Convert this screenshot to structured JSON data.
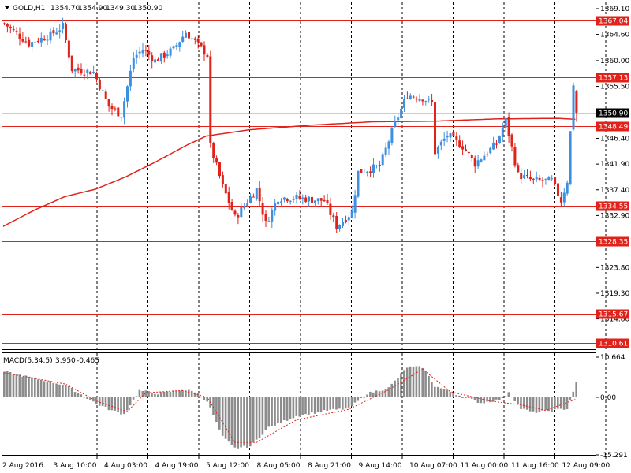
{
  "window": {
    "symbol_label": "GOLD,H1",
    "ohlc": {
      "open": "1354.70",
      "high": "1354.90",
      "low": "1349.30",
      "close": "1350.90"
    }
  },
  "indicator": {
    "name": "MACD(5,34,5)",
    "main": "3.950",
    "signal": "-0.465"
  },
  "colors": {
    "background": "#ffffff",
    "bull": "#3d8fe0",
    "bear": "#e0221b",
    "level_line": "#e0221b",
    "ma_line": "#e0221b",
    "histogram": "#8c8c8c",
    "signal_line": "#e0221b",
    "grid": "#000000",
    "current_price_tag": "#000000"
  },
  "chart_data": [
    {
      "type": "candlestick",
      "title": "",
      "timeframe": "H1",
      "x_labels": [
        "2 Aug 2016",
        "3 Aug 10:00",
        "4 Aug 03:00",
        "4 Aug 19:00",
        "5 Aug 12:00",
        "8 Aug 05:00",
        "8 Aug 21:00",
        "9 Aug 14:00",
        "10 Aug 07:00",
        "11 Aug 00:00",
        "11 Aug 16:00",
        "12 Aug 09:00"
      ],
      "y_ticks": [
        "1369.10",
        "1364.60",
        "1360.00",
        "1355.50",
        "1346.40",
        "1341.90",
        "1337.40",
        "1332.90",
        "1323.80",
        "1319.30",
        "1314.80"
      ],
      "ylim": [
        1309.5,
        1370.2
      ],
      "grid": "vertical dotted",
      "current_price": "1350.90",
      "horizontal_levels": [
        "1367.04",
        "1357.13",
        "1348.49",
        "1334.55",
        "1328.35",
        "1315.67",
        "1310.61"
      ],
      "moving_average": [
        {
          "x": 0,
          "y": 1331.0
        },
        {
          "x": 10,
          "y": 1333.8
        },
        {
          "x": 20,
          "y": 1336.2
        },
        {
          "x": 30,
          "y": 1337.5
        },
        {
          "x": 40,
          "y": 1339.7
        },
        {
          "x": 50,
          "y": 1342.4
        },
        {
          "x": 60,
          "y": 1345.3
        },
        {
          "x": 66,
          "y": 1346.8
        },
        {
          "x": 80,
          "y": 1347.9
        },
        {
          "x": 100,
          "y": 1348.7
        },
        {
          "x": 120,
          "y": 1349.3
        },
        {
          "x": 140,
          "y": 1349.4
        },
        {
          "x": 160,
          "y": 1349.8
        },
        {
          "x": 180,
          "y": 1349.9
        },
        {
          "x": 200,
          "y": 1349.4
        },
        {
          "x": 210,
          "y": 1348.8
        }
      ],
      "anchors": [
        {
          "x": 0,
          "c": 1366.5
        },
        {
          "x": 8,
          "c": 1363.0
        },
        {
          "x": 15,
          "c": 1364.5
        },
        {
          "x": 19,
          "c": 1366.0
        },
        {
          "x": 22,
          "c": 1358.5
        },
        {
          "x": 29,
          "c": 1358.0
        },
        {
          "x": 34,
          "c": 1352.0
        },
        {
          "x": 38,
          "c": 1350.5
        },
        {
          "x": 42,
          "c": 1360.5
        },
        {
          "x": 45,
          "c": 1362.0
        },
        {
          "x": 49,
          "c": 1360.0
        },
        {
          "x": 55,
          "c": 1362.0
        },
        {
          "x": 59,
          "c": 1365.0
        },
        {
          "x": 66,
          "c": 1361.0
        },
        {
          "x": 67,
          "c": 1345.0
        },
        {
          "x": 71,
          "c": 1338.0
        },
        {
          "x": 75,
          "c": 1332.5
        },
        {
          "x": 82,
          "c": 1337.5
        },
        {
          "x": 85,
          "c": 1331.5
        },
        {
          "x": 89,
          "c": 1336.0
        },
        {
          "x": 95,
          "c": 1336.0
        },
        {
          "x": 104,
          "c": 1335.5
        },
        {
          "x": 108,
          "c": 1331.0
        },
        {
          "x": 113,
          "c": 1333.5
        },
        {
          "x": 115,
          "c": 1340.5
        },
        {
          "x": 122,
          "c": 1341.5
        },
        {
          "x": 127,
          "c": 1349.0
        },
        {
          "x": 131,
          "c": 1354.0
        },
        {
          "x": 136,
          "c": 1353.5
        },
        {
          "x": 139,
          "c": 1352.5
        },
        {
          "x": 140,
          "c": 1344.0
        },
        {
          "x": 144,
          "c": 1347.0
        },
        {
          "x": 149,
          "c": 1345.0
        },
        {
          "x": 153,
          "c": 1342.0
        },
        {
          "x": 160,
          "c": 1345.5
        },
        {
          "x": 163,
          "c": 1349.5
        },
        {
          "x": 167,
          "c": 1340.0
        },
        {
          "x": 172,
          "c": 1339.0
        },
        {
          "x": 178,
          "c": 1339.0
        },
        {
          "x": 181,
          "c": 1335.5
        },
        {
          "x": 183,
          "c": 1339.0
        },
        {
          "x": 185,
          "c": 1356.0
        },
        {
          "x": 186,
          "c": 1350.9
        }
      ]
    },
    {
      "type": "bar",
      "title": "MACD(5,34,5)",
      "series": [
        {
          "name": "MACD(5,34,5)"
        }
      ],
      "y_ticks": [
        "10.664",
        "0.00",
        "-15.291"
      ],
      "ylim": [
        -15.291,
        10.664
      ],
      "main": [
        {
          "x": 0,
          "y": 6.8
        },
        {
          "x": 20,
          "y": 3.2
        },
        {
          "x": 30,
          "y": -1.7
        },
        {
          "x": 35,
          "y": -3.5
        },
        {
          "x": 39,
          "y": -4.5
        },
        {
          "x": 44,
          "y": 1.8
        },
        {
          "x": 50,
          "y": 1.0
        },
        {
          "x": 58,
          "y": 2.0
        },
        {
          "x": 62,
          "y": 1.5
        },
        {
          "x": 66,
          "y": -1.0
        },
        {
          "x": 71,
          "y": -10.5
        },
        {
          "x": 75,
          "y": -13.5
        },
        {
          "x": 80,
          "y": -13.0
        },
        {
          "x": 86,
          "y": -8.0
        },
        {
          "x": 95,
          "y": -5.0
        },
        {
          "x": 105,
          "y": -3.5
        },
        {
          "x": 112,
          "y": -3.0
        },
        {
          "x": 118,
          "y": 1.0
        },
        {
          "x": 125,
          "y": 2.5
        },
        {
          "x": 131,
          "y": 8.0
        },
        {
          "x": 136,
          "y": 8.0
        },
        {
          "x": 140,
          "y": 3.0
        },
        {
          "x": 148,
          "y": 0.5
        },
        {
          "x": 155,
          "y": -1.5
        },
        {
          "x": 162,
          "y": -0.5
        },
        {
          "x": 164,
          "y": 1.5
        },
        {
          "x": 168,
          "y": -3.0
        },
        {
          "x": 172,
          "y": -4.0
        },
        {
          "x": 178,
          "y": -3.5
        },
        {
          "x": 183,
          "y": -3.0
        },
        {
          "x": 186,
          "y": 3.95
        }
      ],
      "signal": [
        {
          "x": 0,
          "y": 6.5
        },
        {
          "x": 20,
          "y": 3.5
        },
        {
          "x": 30,
          "y": -1.0
        },
        {
          "x": 40,
          "y": -3.8
        },
        {
          "x": 46,
          "y": 1.2
        },
        {
          "x": 58,
          "y": 1.8
        },
        {
          "x": 66,
          "y": 0.0
        },
        {
          "x": 75,
          "y": -12.0
        },
        {
          "x": 82,
          "y": -12.0
        },
        {
          "x": 95,
          "y": -6.0
        },
        {
          "x": 112,
          "y": -3.2
        },
        {
          "x": 125,
          "y": 2.0
        },
        {
          "x": 136,
          "y": 7.5
        },
        {
          "x": 145,
          "y": 1.5
        },
        {
          "x": 158,
          "y": -1.0
        },
        {
          "x": 168,
          "y": -2.0
        },
        {
          "x": 176,
          "y": -3.5
        },
        {
          "x": 186,
          "y": -0.465
        }
      ]
    }
  ]
}
